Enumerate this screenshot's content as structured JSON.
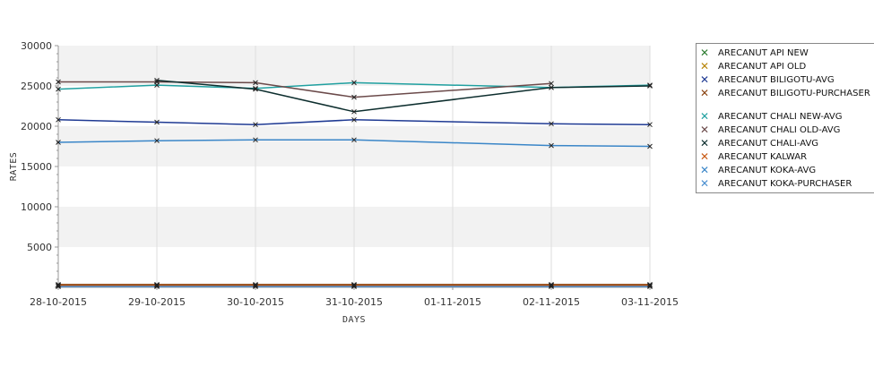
{
  "chart_data": {
    "type": "line",
    "title": "",
    "xlabel": "DAYS",
    "ylabel": "RATES",
    "categories": [
      "28-10-2015",
      "29-10-2015",
      "30-10-2015",
      "31-10-2015",
      "01-11-2015",
      "02-11-2015",
      "03-11-2015"
    ],
    "ylim": [
      0,
      30000
    ],
    "yticks": [
      5000,
      10000,
      15000,
      20000,
      25000,
      30000
    ],
    "grid": true,
    "legend_position": "right",
    "series": [
      {
        "name": "ARECANUT API NEW",
        "color": "#2e7d32",
        "values": [
          250,
          250,
          250,
          250,
          null,
          250,
          250
        ]
      },
      {
        "name": "ARECANUT API OLD",
        "color": "#b8860b",
        "values": [
          300,
          300,
          300,
          300,
          null,
          300,
          300
        ]
      },
      {
        "name": "ARECANUT BILIGOTU-AVG",
        "color": "#1f3a93",
        "values": [
          20800,
          20500,
          20200,
          20800,
          null,
          20300,
          20200
        ]
      },
      {
        "name": "ARECANUT BILIGOTU-PURCHASER",
        "color": "#8b4513",
        "values": [
          350,
          350,
          350,
          350,
          null,
          350,
          350
        ]
      },
      {
        "name": "ARECANUT CHALI NEW-AVG",
        "color": "#20a0a0",
        "values": [
          24600,
          25100,
          24700,
          25400,
          null,
          24800,
          25100
        ]
      },
      {
        "name": "ARECANUT CHALI OLD-AVG",
        "color": "#6b4a4a",
        "values": [
          25500,
          25500,
          25400,
          23600,
          null,
          25300,
          null
        ]
      },
      {
        "name": "ARECANUT CHALI-AVG",
        "color": "#0d2e2e",
        "values": [
          null,
          25700,
          24600,
          21800,
          null,
          24800,
          25000
        ]
      },
      {
        "name": "ARECANUT KALWAR",
        "color": "#c85a14",
        "values": [
          200,
          200,
          200,
          200,
          null,
          200,
          200
        ]
      },
      {
        "name": "ARECANUT KOKA-AVG",
        "color": "#3a86c8",
        "values": [
          18000,
          18200,
          18300,
          18300,
          null,
          17600,
          17500
        ]
      },
      {
        "name": "ARECANUT KOKA-PURCHASER",
        "color": "#4a8fd0",
        "values": [
          100,
          100,
          100,
          100,
          null,
          100,
          100
        ]
      }
    ]
  },
  "legend": {
    "items": [
      {
        "label": "ARECANUT API NEW",
        "color": "#2e7d32"
      },
      {
        "label": "ARECANUT API OLD",
        "color": "#b8860b"
      },
      {
        "label": "ARECANUT BILIGOTU-AVG",
        "color": "#1f3a93"
      },
      {
        "label": "ARECANUT BILIGOTU-PURCHASER",
        "color": "#8b4513"
      },
      {
        "label": "ARECANUT CHALI NEW-AVG",
        "color": "#20a0a0"
      },
      {
        "label": "ARECANUT CHALI OLD-AVG",
        "color": "#6b4a4a"
      },
      {
        "label": "ARECANUT CHALI-AVG",
        "color": "#0d2e2e"
      },
      {
        "label": "ARECANUT KALWAR",
        "color": "#c85a14"
      },
      {
        "label": "ARECANUT KOKA-AVG",
        "color": "#3a86c8"
      },
      {
        "label": "ARECANUT KOKA-PURCHASER",
        "color": "#4a8fd0"
      }
    ]
  },
  "colors": {
    "band": "#f2f2f2",
    "grid": "#dddddd",
    "axis": "#999999"
  }
}
